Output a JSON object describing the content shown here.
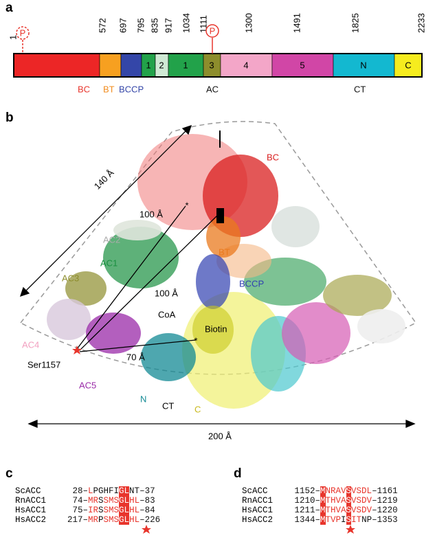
{
  "figure": {
    "panel_a": {
      "label": "a",
      "positions": [
        1,
        572,
        697,
        795,
        835,
        917,
        1034,
        1111,
        1300,
        1491,
        1825,
        2233
      ],
      "phospho": [
        "P",
        "P"
      ],
      "segments": [
        "1",
        "2",
        "1",
        "3",
        "4",
        "5",
        "N",
        "C"
      ],
      "groups": [
        "BC",
        "BT",
        "BCCP",
        "AC",
        "CT"
      ]
    },
    "panel_b": {
      "label": "b",
      "labels": [
        "BC",
        "AC2",
        "BT",
        "AC1",
        "BCCP",
        "AC3",
        "CoA",
        "Biotin",
        "AC4",
        "Ser1157",
        "AC5",
        "N",
        "CT",
        "C"
      ],
      "distances": [
        "140 Å",
        "100 Å",
        "100 Å",
        "70 Å",
        "200 Å"
      ]
    },
    "panel_c": {
      "label": "c",
      "rows": [
        [
          "ScACC",
          "28–",
          "L",
          "PGHFI",
          "GL",
          "NT",
          "–37"
        ],
        [
          "RnACC1",
          "74–",
          "MR",
          "S",
          "SMS",
          "GL",
          "HL",
          "–83"
        ],
        [
          "HsACC1",
          "75–",
          "IR",
          "S",
          "SMS",
          "GL",
          "HL",
          "–84"
        ],
        [
          "HsACC2",
          "217–",
          "MR",
          "P",
          "SMS",
          "GL",
          "HL",
          "–226"
        ]
      ]
    },
    "panel_d": {
      "label": "d",
      "rows": [
        [
          "ScACC",
          "1152–",
          "M",
          "NRAV",
          "S",
          "VSDL",
          "–1161"
        ],
        [
          "RnACC1",
          "1210–",
          "M",
          "THVA",
          "S",
          "VSDV",
          "–1219"
        ],
        [
          "HsACC1",
          "1211–",
          "M",
          "THVA",
          "S",
          "VSDV",
          "–1220"
        ],
        [
          "HsACC2",
          "1344–",
          "M",
          "TVP",
          "I",
          "S",
          "IT",
          "NP",
          "–1353"
        ]
      ]
    }
  }
}
